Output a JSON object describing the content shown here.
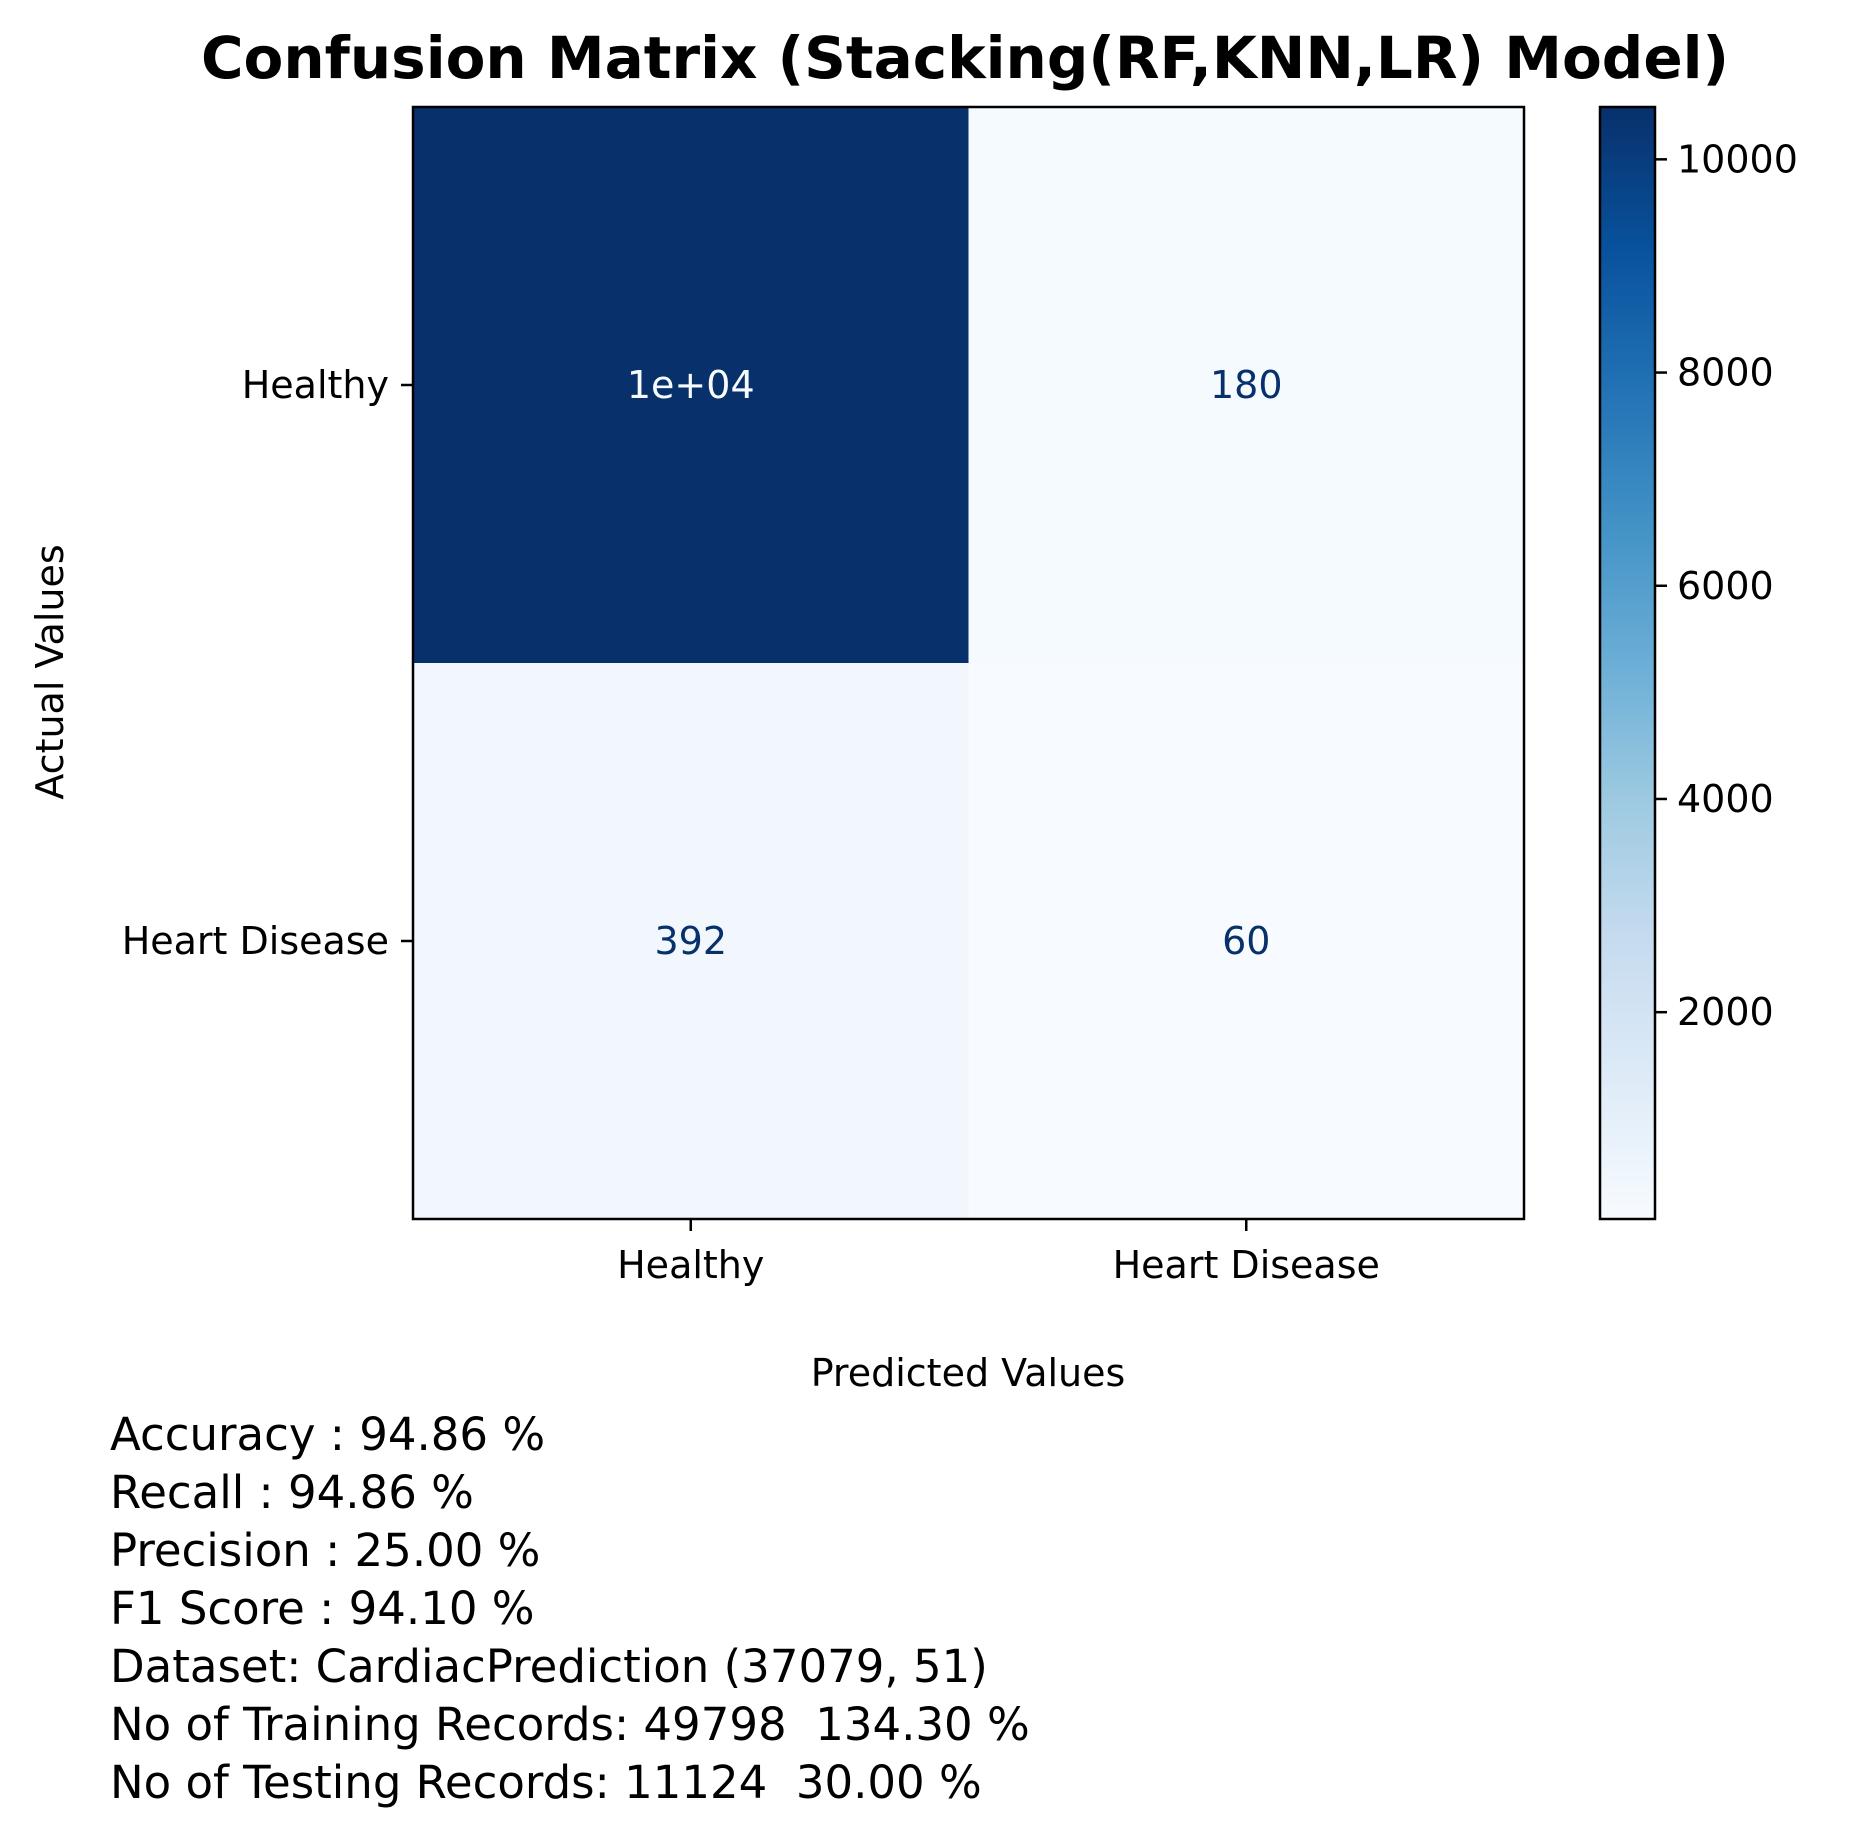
{
  "chart_data": {
    "type": "heatmap",
    "title": "Confusion Matrix (Stacking(RF,KNN,LR) Model)",
    "xlabel": "Predicted Values",
    "ylabel": "Actual Values",
    "x_categories": [
      "Healthy",
      "Heart Disease"
    ],
    "y_categories": [
      "Healthy",
      "Heart Disease"
    ],
    "values": [
      [
        10491,
        180
      ],
      [
        392,
        60
      ]
    ],
    "cell_labels": [
      [
        "1e+04",
        "180"
      ],
      [
        "392",
        "60"
      ]
    ],
    "colormap": "Blues",
    "colorbar": {
      "range": [
        60,
        10491
      ],
      "ticks": [
        2000,
        4000,
        6000,
        8000,
        10000
      ]
    }
  },
  "stats": [
    "Accuracy : 94.86 %",
    "Recall : 94.86 %",
    "Precision : 25.00 %",
    "F1 Score : 94.10 %",
    "Dataset: CardiacPrediction (37079, 51)",
    "No of Training Records: 49798  134.30 %",
    "No of Testing Records: 11124  30.00 %"
  ]
}
